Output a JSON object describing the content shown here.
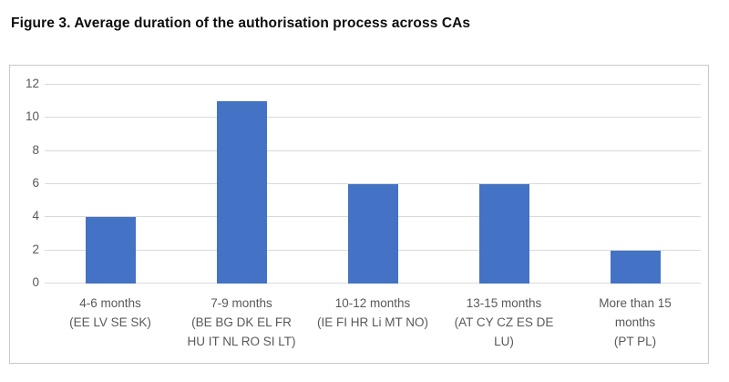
{
  "figure": {
    "title": "Figure 3. Average duration of the authorisation process across CAs"
  },
  "chart_data": {
    "type": "bar",
    "title": "Figure 3. Average duration of the authorisation process across CAs",
    "categories": [
      "4-6 months (EE LV SE SK)",
      "7-9 months (BE BG DK EL FR HU IT NL RO SI LT)",
      "10-12 months (IE FI HR Li MT NO)",
      "13-15 months (AT CY CZ ES DE LU)",
      "More than 15 months (PT PL)"
    ],
    "category_lines": [
      [
        "4-6 months",
        "(EE LV SE SK)"
      ],
      [
        "7-9 months",
        "(BE BG DK EL FR",
        "HU IT NL RO SI LT)"
      ],
      [
        "10-12 months",
        "(IE FI HR Li MT NO)"
      ],
      [
        "13-15 months",
        "(AT CY CZ ES DE",
        "LU)"
      ],
      [
        "More than 15",
        "months",
        "(PT PL)"
      ]
    ],
    "values": [
      4,
      11,
      6,
      6,
      2
    ],
    "xlabel": "",
    "ylabel": "",
    "ylim": [
      0,
      12
    ],
    "yticks": [
      0,
      2,
      4,
      6,
      8,
      10,
      12
    ],
    "grid": "horizontal",
    "legend": "none",
    "bar_color": "#4472c4",
    "colors": {
      "grid": "#d9d9d9",
      "axis_text": "#595959",
      "frame_border": "#c9c9c9",
      "background": "#ffffff"
    }
  }
}
